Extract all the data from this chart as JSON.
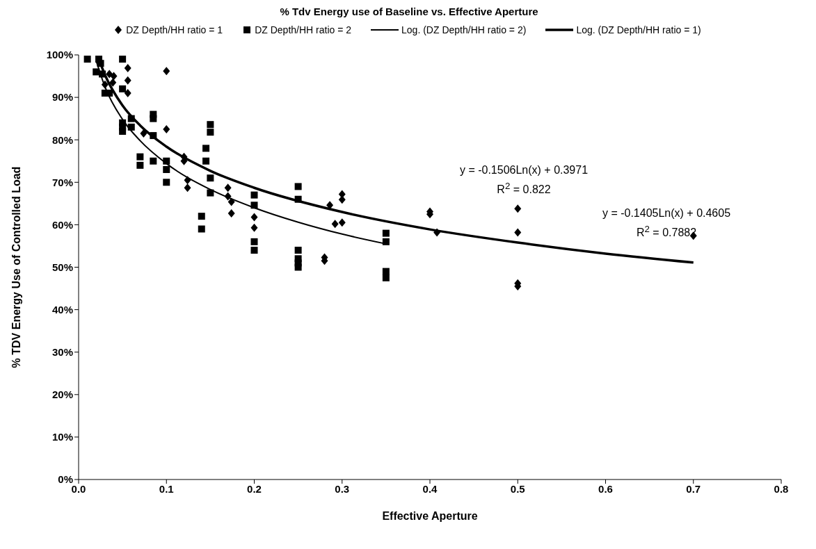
{
  "chart_data": {
    "type": "scatter",
    "title": "% Tdv Energy use of Baseline vs. Effective Aperture",
    "xlabel": "Effective Aperture",
    "ylabel": "% TDV Energy Use of Controlled Load",
    "xlim": [
      0,
      0.8
    ],
    "xticks": [
      {
        "value": 0,
        "label": "0.0"
      },
      0.1,
      0.2,
      0.3,
      0.4,
      0.5,
      0.6,
      0.7,
      0.8
    ],
    "ylim": [
      0,
      1
    ],
    "yticks": [
      {
        "value": 0,
        "label": "0%"
      },
      {
        "value": 0.1,
        "label": "10%"
      },
      {
        "value": 0.2,
        "label": "20%"
      },
      {
        "value": 0.3,
        "label": "30%"
      },
      {
        "value": 0.4,
        "label": "40%"
      },
      {
        "value": 0.5,
        "label": "50%"
      },
      {
        "value": 0.6,
        "label": "60%"
      },
      {
        "value": 0.7,
        "label": "70%"
      },
      {
        "value": 0.8,
        "label": "80%"
      },
      {
        "value": 0.9,
        "label": "90%"
      },
      {
        "value": 1,
        "label": "100%"
      }
    ],
    "grid": false,
    "legend": "top",
    "series": [
      {
        "name": "DZ Depth/HH ratio = 1",
        "marker": "diamond",
        "color": "#000000",
        "x": [
          0.03,
          0.035,
          0.04,
          0.039,
          0.056,
          0.056,
          0.056,
          0.1,
          0.1,
          0.074,
          0.12,
          0.12,
          0.124,
          0.124,
          0.17,
          0.17,
          0.174,
          0.174,
          0.2,
          0.2,
          0.286,
          0.28,
          0.28,
          0.3,
          0.3,
          0.292,
          0.3,
          0.4,
          0.4,
          0.408,
          0.5,
          0.5,
          0.5,
          0.5,
          0.7
        ],
        "values": [
          0.93,
          0.955,
          0.95,
          0.935,
          0.969,
          0.94,
          0.91,
          0.962,
          0.825,
          0.815,
          0.76,
          0.75,
          0.705,
          0.687,
          0.687,
          0.667,
          0.654,
          0.627,
          0.618,
          0.593,
          0.646,
          0.523,
          0.515,
          0.672,
          0.659,
          0.602,
          0.605,
          0.631,
          0.625,
          0.582,
          0.638,
          0.582,
          0.462,
          0.455,
          0.574
        ]
      },
      {
        "name": "DZ Depth/HH ratio = 2",
        "marker": "square",
        "color": "#000000",
        "x": [
          0.01,
          0.023,
          0.025,
          0.02,
          0.027,
          0.03,
          0.035,
          0.05,
          0.05,
          0.05,
          0.05,
          0.05,
          0.06,
          0.06,
          0.07,
          0.07,
          0.085,
          0.085,
          0.085,
          0.085,
          0.1,
          0.1,
          0.1,
          0.14,
          0.14,
          0.145,
          0.145,
          0.15,
          0.15,
          0.15,
          0.15,
          0.2,
          0.2,
          0.2,
          0.2,
          0.25,
          0.25,
          0.25,
          0.25,
          0.25,
          0.25,
          0.35,
          0.35,
          0.35,
          0.35
        ],
        "values": [
          0.99,
          0.99,
          0.98,
          0.96,
          0.955,
          0.91,
          0.91,
          0.99,
          0.92,
          0.84,
          0.83,
          0.82,
          0.85,
          0.83,
          0.76,
          0.74,
          0.86,
          0.85,
          0.81,
          0.75,
          0.75,
          0.73,
          0.7,
          0.62,
          0.59,
          0.78,
          0.75,
          0.836,
          0.818,
          0.71,
          0.675,
          0.67,
          0.646,
          0.56,
          0.54,
          0.69,
          0.66,
          0.54,
          0.52,
          0.51,
          0.5,
          0.58,
          0.56,
          0.49,
          0.475
        ]
      },
      {
        "name": "Log. (DZ Depth/HH ratio = 2)",
        "type": "line",
        "marker": "none",
        "line_style": "solid",
        "color": "#000000",
        "x": [
          0.02,
          0.03,
          0.05,
          0.07,
          0.1,
          0.15,
          0.2,
          0.25,
          0.3,
          0.35
        ],
        "values": [
          0.986,
          0.925,
          0.848,
          0.798,
          0.744,
          0.683,
          0.64,
          0.606,
          0.578,
          0.555
        ]
      },
      {
        "name": "Log. (DZ Depth/HH ratio = 1)",
        "type": "line",
        "marker": "none",
        "line_style": "solid",
        "color": "#000000",
        "x": [
          0.025,
          0.03,
          0.05,
          0.07,
          0.1,
          0.15,
          0.2,
          0.3,
          0.4,
          0.5,
          0.6,
          0.7
        ],
        "values": [
          0.979,
          0.953,
          0.881,
          0.834,
          0.784,
          0.727,
          0.687,
          0.63,
          0.589,
          0.558,
          0.532,
          0.511
        ]
      }
    ],
    "annotations": [
      "y = -0.1506Ln(x) + 0.3971",
      "R$^{2}$ = 0.822",
      "y = -0.1405Ln(x) + 0.4605",
      "R$^{2}$ = 0.7882"
    ]
  }
}
